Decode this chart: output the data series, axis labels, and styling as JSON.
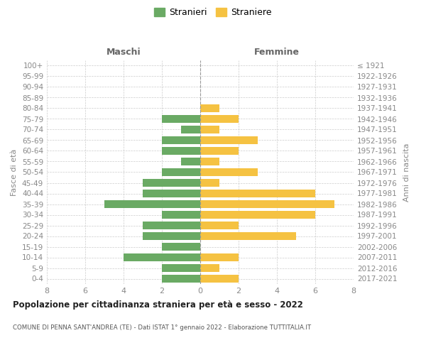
{
  "age_groups": [
    "0-4",
    "5-9",
    "10-14",
    "15-19",
    "20-24",
    "25-29",
    "30-34",
    "35-39",
    "40-44",
    "45-49",
    "50-54",
    "55-59",
    "60-64",
    "65-69",
    "70-74",
    "75-79",
    "80-84",
    "85-89",
    "90-94",
    "95-99",
    "100+"
  ],
  "birth_years": [
    "2017-2021",
    "2012-2016",
    "2007-2011",
    "2002-2006",
    "1997-2001",
    "1992-1996",
    "1987-1991",
    "1982-1986",
    "1977-1981",
    "1972-1976",
    "1967-1971",
    "1962-1966",
    "1957-1961",
    "1952-1956",
    "1947-1951",
    "1942-1946",
    "1937-1941",
    "1932-1936",
    "1927-1931",
    "1922-1926",
    "≤ 1921"
  ],
  "maschi": [
    2,
    2,
    4,
    2,
    3,
    3,
    2,
    5,
    3,
    3,
    2,
    1,
    2,
    2,
    1,
    2,
    0,
    0,
    0,
    0,
    0
  ],
  "femmine": [
    2,
    1,
    2,
    0,
    5,
    2,
    6,
    7,
    6,
    1,
    3,
    1,
    2,
    3,
    1,
    2,
    1,
    0,
    0,
    0,
    0
  ],
  "maschi_color": "#6aaa64",
  "femmine_color": "#f5c242",
  "bar_height": 0.72,
  "xlim": 8,
  "title": "Popolazione per cittadinanza straniera per età e sesso - 2022",
  "subtitle": "COMUNE DI PENNA SANT'ANDREA (TE) - Dati ISTAT 1° gennaio 2022 - Elaborazione TUTTITALIA.IT",
  "maschi_header": "Maschi",
  "femmine_header": "Femmine",
  "ylabel_left": "Fasce di età",
  "ylabel_right": "Anni di nascita",
  "legend_maschi": "Stranieri",
  "legend_femmine": "Straniere",
  "background_color": "#ffffff",
  "grid_color": "#cccccc",
  "header_color": "#666666",
  "tick_color": "#888888"
}
